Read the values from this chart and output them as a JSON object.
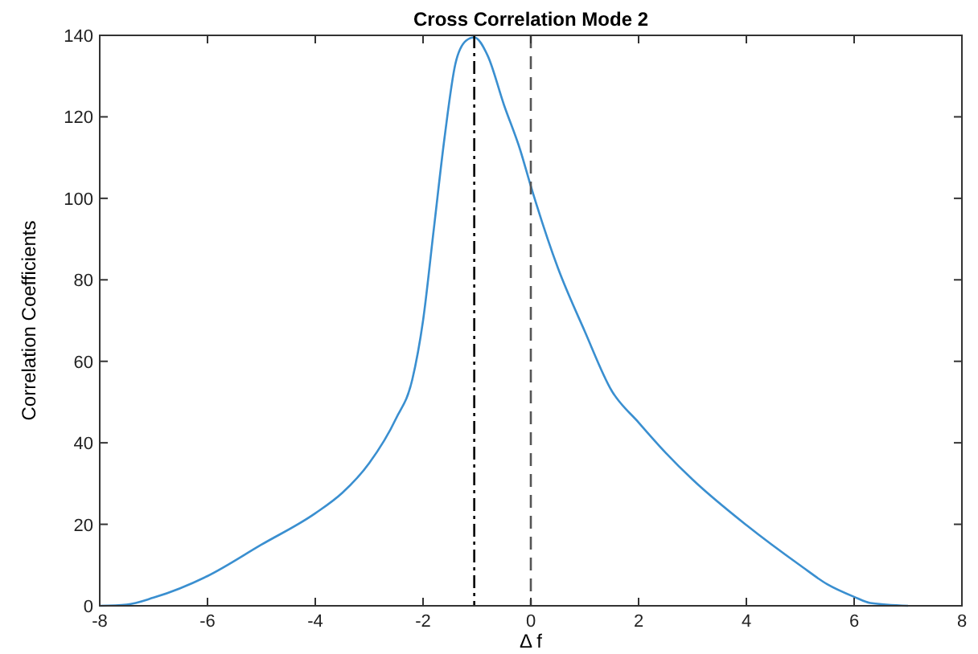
{
  "chart_data": {
    "type": "line",
    "title": "Cross Correlation Mode 2",
    "xlabel": "Δ f",
    "ylabel": "Correlation Coefficients",
    "x": [
      -8,
      -7.5,
      -7,
      -6,
      -5,
      -4,
      -3.5,
      -3,
      -2.5,
      -2.2,
      -2,
      -1.8,
      -1.6,
      -1.4,
      -1.2,
      -1.05,
      -0.8,
      -0.5,
      -0.2,
      0,
      0.5,
      1,
      1.5,
      2,
      2.5,
      3,
      4,
      5,
      5.5,
      6,
      6.3,
      7
    ],
    "series": [
      {
        "color": "#3a8fd0",
        "values": [
          0,
          0.3,
          2,
          7.3,
          15,
          22.7,
          27.7,
          35,
          46,
          55.5,
          70,
          92.5,
          115,
          133,
          138.7,
          139.5,
          135,
          123,
          112,
          103,
          83,
          67.4,
          52.8,
          45,
          37.6,
          31,
          19.8,
          9.9,
          5.3,
          2.2,
          0.7,
          0
        ]
      }
    ],
    "xlim": [
      -8,
      8
    ],
    "xticks": [
      -8,
      -6,
      -4,
      -2,
      0,
      2,
      4,
      6,
      8
    ],
    "ylim": [
      0,
      140
    ],
    "yticks": [
      0,
      20,
      40,
      60,
      80,
      100,
      120,
      140
    ],
    "grid": false,
    "marker": "none",
    "line_style": "solid",
    "ref_lines": [
      {
        "axis": "x",
        "value": -1.05,
        "color": "#000000",
        "line_style": "dashdot"
      },
      {
        "axis": "x",
        "value": 0,
        "color": "#555555",
        "line_style": "dashed"
      }
    ]
  }
}
